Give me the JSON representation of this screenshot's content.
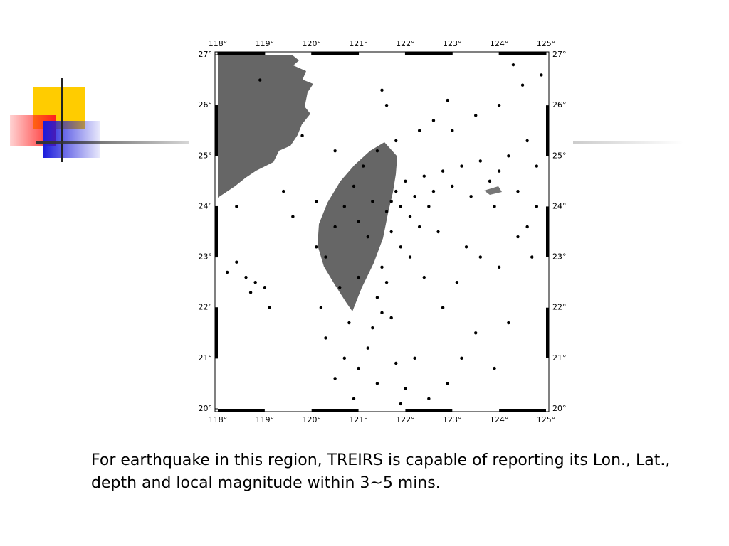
{
  "chart_data": {
    "type": "scatter",
    "color": "#000000",
    "xlim": [
      118,
      125
    ],
    "ylim": [
      20,
      27
    ],
    "xticks": [
      {
        "value": 118,
        "label": "118°"
      },
      {
        "value": 119,
        "label": "119°"
      },
      {
        "value": 120,
        "label": "120°"
      },
      {
        "value": 121,
        "label": "121°"
      },
      {
        "value": 122,
        "label": "122°"
      },
      {
        "value": 123,
        "label": "123°"
      },
      {
        "value": 124,
        "label": "124°"
      },
      {
        "value": 125,
        "label": "125°"
      }
    ],
    "yticks": [
      {
        "value": 20,
        "label": "20°"
      },
      {
        "value": 21,
        "label": "21°"
      },
      {
        "value": 22,
        "label": "22°"
      },
      {
        "value": 23,
        "label": "23°"
      },
      {
        "value": 24,
        "label": "24°"
      },
      {
        "value": 25,
        "label": "25°"
      },
      {
        "value": 26,
        "label": "26°"
      },
      {
        "value": 27,
        "label": "27°"
      }
    ],
    "x": [
      121.7,
      121.8,
      121.9,
      122.0,
      122.2,
      122.4,
      122.6,
      122.8,
      123.0,
      123.2,
      123.4,
      123.6,
      123.8,
      124.0,
      124.2,
      124.4,
      124.6,
      124.8,
      122.1,
      122.3,
      122.5,
      121.6,
      121.7,
      121.9,
      122.1,
      121.5,
      121.6,
      121.4,
      121.5,
      121.3,
      121.7,
      121.2,
      121.0,
      121.4,
      121.8,
      122.0,
      122.2,
      122.5,
      120.7,
      120.5,
      120.9,
      120.3,
      120.2,
      120.6,
      120.1,
      120.3,
      120.5,
      120.7,
      120.9,
      121.0,
      121.2,
      121.3,
      121.1,
      121.4,
      121.8,
      122.3,
      122.6,
      123.0,
      123.5,
      124.0,
      124.5,
      124.9,
      124.3,
      122.9,
      121.5,
      121.6,
      118.9,
      118.4,
      118.7,
      118.8,
      119.0,
      118.6,
      119.1,
      118.2,
      119.4,
      118.4,
      119.6,
      120.5,
      119.8,
      120.1,
      123.3,
      123.6,
      124.0,
      124.4,
      124.7,
      123.1,
      122.8,
      123.5,
      123.9,
      122.9,
      123.2,
      124.2,
      124.8,
      124.6,
      122.4,
      122.7,
      123.9,
      121.9,
      120.8,
      121.0
    ],
    "values": [
      24.1,
      24.3,
      24.0,
      24.5,
      24.2,
      24.6,
      24.3,
      24.7,
      24.4,
      24.8,
      24.2,
      24.9,
      24.5,
      24.7,
      25.0,
      24.3,
      25.3,
      24.8,
      23.8,
      23.6,
      24.0,
      23.9,
      23.5,
      23.2,
      23.0,
      22.8,
      22.5,
      22.2,
      21.9,
      21.6,
      21.8,
      21.2,
      20.8,
      20.5,
      20.9,
      20.4,
      21.0,
      20.2,
      21.0,
      20.6,
      20.2,
      21.4,
      22.0,
      22.4,
      23.2,
      23.0,
      23.6,
      24.0,
      24.4,
      23.7,
      23.4,
      24.1,
      24.8,
      25.1,
      25.3,
      25.5,
      25.7,
      25.5,
      25.8,
      26.0,
      26.4,
      26.6,
      26.8,
      26.1,
      26.3,
      26.0,
      26.5,
      22.9,
      22.3,
      22.5,
      22.4,
      22.6,
      22.0,
      22.7,
      24.3,
      24.0,
      23.8,
      25.1,
      25.4,
      24.1,
      23.2,
      23.0,
      22.8,
      23.4,
      23.0,
      22.5,
      22.0,
      21.5,
      20.8,
      20.5,
      21.0,
      21.7,
      24.0,
      23.6,
      22.6,
      23.5,
      24.0,
      20.1,
      21.7,
      22.6
    ]
  },
  "caption": "For earthquake in this region, TREIRS is capable of reporting its Lon., Lat., depth and local magnitude within 3~5 mins."
}
